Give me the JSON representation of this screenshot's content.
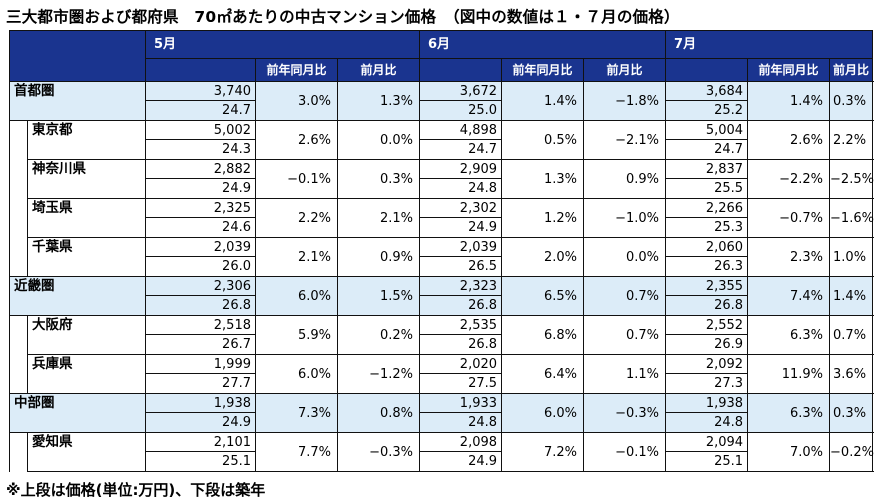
{
  "title": "三大都市圏および都府県　70㎡あたりの中古マンション価格　（図中の数値は１・７月の価格）",
  "note": "※上段は価格(単位:万円)、下段は築年",
  "months": [
    "5月",
    "6月",
    "7月"
  ],
  "subheaders": {
    "yoy": "前年同月比",
    "mom": "前月比"
  },
  "rows": [
    {
      "name": "首都圏",
      "group": true,
      "data": [
        {
          "price": "3,740",
          "age": "24.7",
          "yoy": "3.0%",
          "mom": "1.3%"
        },
        {
          "price": "3,672",
          "age": "25.0",
          "yoy": "1.4%",
          "mom": "−1.8%"
        },
        {
          "price": "3,684",
          "age": "25.2",
          "yoy": "1.4%",
          "mom": "0.3%"
        }
      ]
    },
    {
      "name": "東京都",
      "group": false,
      "data": [
        {
          "price": "5,002",
          "age": "24.3",
          "yoy": "2.6%",
          "mom": "0.0%"
        },
        {
          "price": "4,898",
          "age": "24.7",
          "yoy": "0.5%",
          "mom": "−2.1%"
        },
        {
          "price": "5,004",
          "age": "24.7",
          "yoy": "2.6%",
          "mom": "2.2%"
        }
      ]
    },
    {
      "name": "神奈川県",
      "group": false,
      "data": [
        {
          "price": "2,882",
          "age": "24.9",
          "yoy": "−0.1%",
          "mom": "0.3%"
        },
        {
          "price": "2,909",
          "age": "24.8",
          "yoy": "1.3%",
          "mom": "0.9%"
        },
        {
          "price": "2,837",
          "age": "25.5",
          "yoy": "−2.2%",
          "mom": "−2.5%"
        }
      ]
    },
    {
      "name": "埼玉県",
      "group": false,
      "data": [
        {
          "price": "2,325",
          "age": "24.6",
          "yoy": "2.2%",
          "mom": "2.1%"
        },
        {
          "price": "2,302",
          "age": "24.9",
          "yoy": "1.2%",
          "mom": "−1.0%"
        },
        {
          "price": "2,266",
          "age": "25.3",
          "yoy": "−0.7%",
          "mom": "−1.6%"
        }
      ]
    },
    {
      "name": "千葉県",
      "group": false,
      "data": [
        {
          "price": "2,039",
          "age": "26.0",
          "yoy": "2.1%",
          "mom": "0.9%"
        },
        {
          "price": "2,039",
          "age": "26.5",
          "yoy": "2.0%",
          "mom": "0.0%"
        },
        {
          "price": "2,060",
          "age": "26.3",
          "yoy": "2.3%",
          "mom": "1.0%"
        }
      ]
    },
    {
      "name": "近畿圏",
      "group": true,
      "data": [
        {
          "price": "2,306",
          "age": "26.8",
          "yoy": "6.0%",
          "mom": "1.5%"
        },
        {
          "price": "2,323",
          "age": "26.8",
          "yoy": "6.5%",
          "mom": "0.7%"
        },
        {
          "price": "2,355",
          "age": "26.8",
          "yoy": "7.4%",
          "mom": "1.4%"
        }
      ]
    },
    {
      "name": "大阪府",
      "group": false,
      "data": [
        {
          "price": "2,518",
          "age": "26.7",
          "yoy": "5.9%",
          "mom": "0.2%"
        },
        {
          "price": "2,535",
          "age": "26.8",
          "yoy": "6.8%",
          "mom": "0.7%"
        },
        {
          "price": "2,552",
          "age": "26.9",
          "yoy": "6.3%",
          "mom": "0.7%"
        }
      ]
    },
    {
      "name": "兵庫県",
      "group": false,
      "data": [
        {
          "price": "1,999",
          "age": "27.7",
          "yoy": "6.0%",
          "mom": "−1.2%"
        },
        {
          "price": "2,020",
          "age": "27.5",
          "yoy": "6.4%",
          "mom": "1.1%"
        },
        {
          "price": "2,092",
          "age": "27.3",
          "yoy": "11.9%",
          "mom": "3.6%"
        }
      ]
    },
    {
      "name": "中部圏",
      "group": true,
      "data": [
        {
          "price": "1,938",
          "age": "24.9",
          "yoy": "7.3%",
          "mom": "0.8%"
        },
        {
          "price": "1,933",
          "age": "24.8",
          "yoy": "6.0%",
          "mom": "−0.3%"
        },
        {
          "price": "1,938",
          "age": "24.8",
          "yoy": "6.3%",
          "mom": "0.3%"
        }
      ]
    },
    {
      "name": "愛知県",
      "group": false,
      "data": [
        {
          "price": "2,101",
          "age": "25.1",
          "yoy": "7.7%",
          "mom": "−0.3%"
        },
        {
          "price": "2,098",
          "age": "24.9",
          "yoy": "7.2%",
          "mom": "−0.1%"
        },
        {
          "price": "2,094",
          "age": "25.1",
          "yoy": "7.0%",
          "mom": "−0.2%"
        }
      ]
    }
  ]
}
